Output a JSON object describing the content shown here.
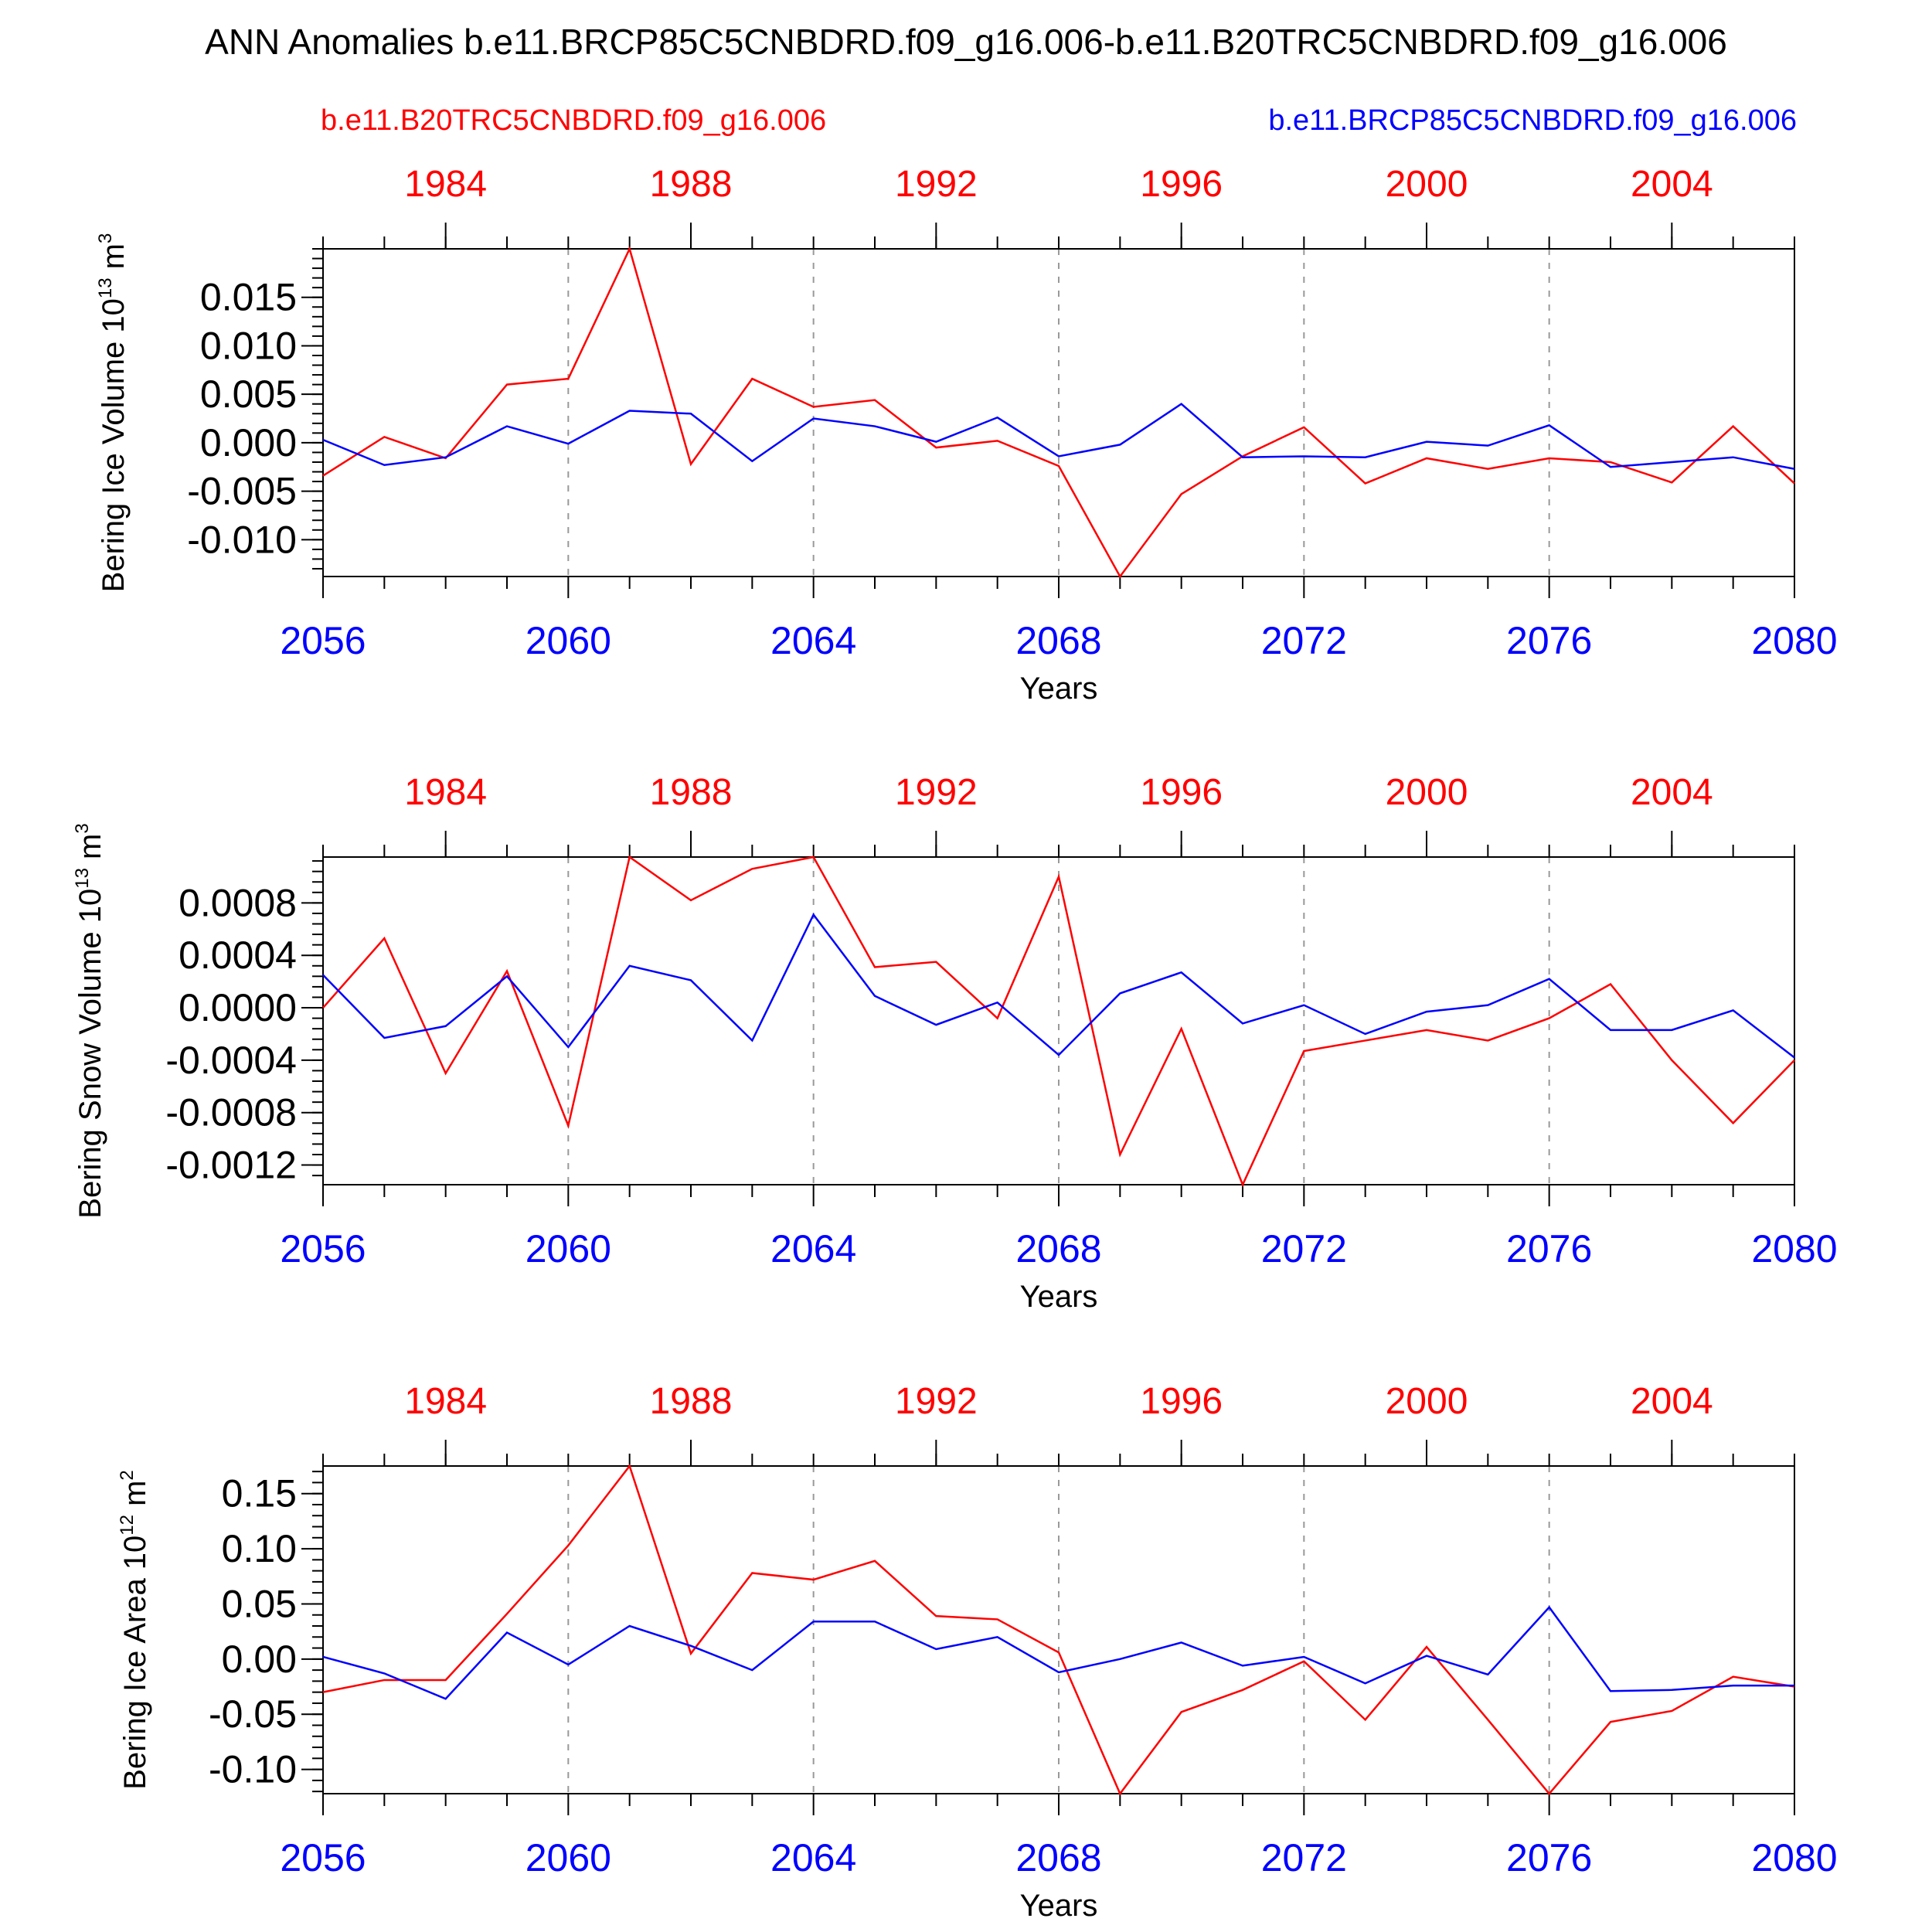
{
  "title": "ANN Anomalies b.e11.BRCP85C5CNBDRD.f09_g16.006-b.e11.B20TRC5CNBDRD.f09_g16.006",
  "legend": {
    "red": "b.e11.B20TRC5CNBDRD.f09_g16.006",
    "blue": "b.e11.BRCP85C5CNBDRD.f09_g16.006"
  },
  "colors": {
    "red": "#ff0000",
    "blue": "#0000ff",
    "grid": "#999999",
    "text": "#000000"
  },
  "chart_data": [
    {
      "type": "line",
      "ylabel_main": "Bering Ice Volume 10",
      "ylabel_sup": "13",
      "ylabel_unit": " m",
      "ylabel_unit_sup": "3",
      "xlabel": "Years",
      "xlim": [
        2056,
        2080
      ],
      "ylim": [
        -0.0138,
        0.02
      ],
      "x_ticks": [
        "2056",
        "2060",
        "2064",
        "2068",
        "2072",
        "2076",
        "2080"
      ],
      "top_ticks": [
        "1984",
        "1988",
        "1992",
        "1996",
        "2000",
        "2004"
      ],
      "y_ticks": [
        "0.015",
        "0.010",
        "0.005",
        "0.000",
        "-0.005",
        "-0.010"
      ],
      "x": [
        2056,
        2057,
        2058,
        2059,
        2060,
        2061,
        2062,
        2063,
        2064,
        2065,
        2066,
        2067,
        2068,
        2069,
        2070,
        2071,
        2072,
        2073,
        2074,
        2075,
        2076,
        2077,
        2078,
        2079,
        2080
      ],
      "series": [
        {
          "color": "red",
          "values": [
            -0.0034,
            0.0006,
            -0.0016,
            0.006,
            0.0066,
            0.02,
            -0.0022,
            0.0066,
            0.0037,
            0.0044,
            -0.0005,
            0.0002,
            -0.0024,
            -0.0138,
            -0.0053,
            -0.0014,
            0.0016,
            -0.0042,
            -0.0016,
            -0.0027,
            -0.0016,
            -0.002,
            -0.0041,
            0.0017,
            -0.0042
          ]
        },
        {
          "color": "blue",
          "values": [
            0.0003,
            -0.0023,
            -0.0015,
            0.0017,
            -0.0001,
            0.0033,
            0.003,
            -0.0019,
            0.0025,
            0.0017,
            0.0001,
            0.0026,
            -0.0014,
            -0.0002,
            0.004,
            -0.0015,
            -0.0014,
            -0.0015,
            0.0001,
            -0.0003,
            0.0018,
            -0.0025,
            -0.002,
            -0.0015,
            -0.0027
          ]
        }
      ]
    },
    {
      "type": "line",
      "ylabel_main": "Bering Snow Volume 10",
      "ylabel_sup": "13",
      "ylabel_unit": " m",
      "ylabel_unit_sup": "3",
      "xlabel": "Years",
      "xlim": [
        2056,
        2080
      ],
      "ylim": [
        -0.00135,
        0.00115
      ],
      "x_ticks": [
        "2056",
        "2060",
        "2064",
        "2068",
        "2072",
        "2076",
        "2080"
      ],
      "top_ticks": [
        "1984",
        "1988",
        "1992",
        "1996",
        "2000",
        "2004"
      ],
      "y_ticks": [
        "0.0008",
        "0.0004",
        "0.0000",
        "-0.0004",
        "-0.0008",
        "-0.0012"
      ],
      "x": [
        2056,
        2057,
        2058,
        2059,
        2060,
        2061,
        2062,
        2063,
        2064,
        2065,
        2066,
        2067,
        2068,
        2069,
        2070,
        2071,
        2072,
        2073,
        2074,
        2075,
        2076,
        2077,
        2078,
        2079,
        2080
      ],
      "series": [
        {
          "color": "red",
          "values": [
            0.0,
            0.00053,
            -0.0005,
            0.00028,
            -0.0009,
            0.00115,
            0.00082,
            0.00106,
            0.00115,
            0.00031,
            0.00035,
            -8e-05,
            0.001,
            -0.00112,
            -0.00016,
            -0.00135,
            -0.00033,
            -0.00025,
            -0.00017,
            -0.00025,
            -8e-05,
            0.00018,
            -0.0004,
            -0.00088,
            -0.0004
          ]
        },
        {
          "color": "blue",
          "values": [
            0.00025,
            -0.00023,
            -0.00014,
            0.00024,
            -0.0003,
            0.00032,
            0.00021,
            -0.00025,
            0.00071,
            9e-05,
            -0.00013,
            4e-05,
            -0.00036,
            0.00011,
            0.00027,
            -0.00012,
            2e-05,
            -0.0002,
            -3e-05,
            2e-05,
            0.00022,
            -0.00017,
            -0.00017,
            -2e-05,
            -0.00038
          ]
        }
      ]
    },
    {
      "type": "line",
      "ylabel_main": "Bering Ice Area 10",
      "ylabel_sup": "12",
      "ylabel_unit": " m",
      "ylabel_unit_sup": "2",
      "xlabel": "Years",
      "xlim": [
        2056,
        2080
      ],
      "ylim": [
        -0.122,
        0.175
      ],
      "x_ticks": [
        "2056",
        "2060",
        "2064",
        "2068",
        "2072",
        "2076",
        "2080"
      ],
      "top_ticks": [
        "1984",
        "1988",
        "1992",
        "1996",
        "2000",
        "2004"
      ],
      "y_ticks": [
        "0.15",
        "0.10",
        "0.05",
        "0.00",
        "-0.05",
        "-0.10"
      ],
      "x": [
        2056,
        2057,
        2058,
        2059,
        2060,
        2061,
        2062,
        2063,
        2064,
        2065,
        2066,
        2067,
        2068,
        2069,
        2070,
        2071,
        2072,
        2073,
        2074,
        2075,
        2076,
        2077,
        2078,
        2079,
        2080
      ],
      "series": [
        {
          "color": "red",
          "values": [
            -0.03,
            -0.019,
            -0.019,
            0.041,
            0.103,
            0.175,
            0.005,
            0.078,
            0.072,
            0.089,
            0.039,
            0.036,
            0.006,
            -0.122,
            -0.048,
            -0.028,
            -0.002,
            -0.055,
            0.011,
            -0.055,
            -0.122,
            -0.057,
            -0.047,
            -0.016,
            -0.025
          ]
        },
        {
          "color": "blue",
          "values": [
            0.002,
            -0.013,
            -0.036,
            0.024,
            -0.005,
            0.03,
            0.012,
            -0.01,
            0.034,
            0.034,
            0.009,
            0.02,
            -0.012,
            0.0,
            0.015,
            -0.006,
            0.002,
            -0.022,
            0.003,
            -0.014,
            0.047,
            -0.029,
            -0.028,
            -0.024,
            -0.024
          ]
        }
      ]
    }
  ]
}
